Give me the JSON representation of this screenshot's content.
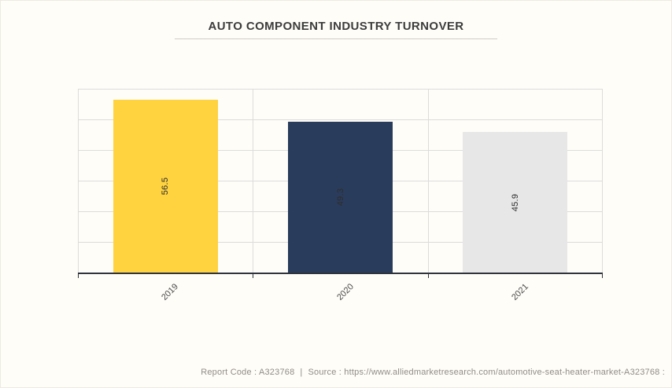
{
  "title": "AUTO COMPONENT INDUSTRY TURNOVER",
  "chart_data": {
    "type": "bar",
    "title": "AUTO COMPONENT INDUSTRY TURNOVER",
    "categories": [
      "2019",
      "2020",
      "2021"
    ],
    "values": [
      56.5,
      49.3,
      45.9
    ],
    "value_labels": [
      "56.5",
      "49.3",
      "45.9"
    ],
    "bar_colors": [
      "#FFD23F",
      "#2A3C5C",
      "#E7E7E7"
    ],
    "xlabel": "",
    "ylabel": "",
    "ylim": [
      0,
      60
    ],
    "grid_step": 10,
    "grid": true,
    "legend": false,
    "y_tick_labels_visible": false,
    "value_label_rotation": -90,
    "x_tick_label_rotation": -45
  },
  "footer": {
    "report_code": "Report Code : A323768",
    "separator": "|",
    "source": "Source : https://www.alliedmarketresearch.com/automotive-seat-heater-market-A323768 :"
  },
  "colors": {
    "background": "#FFFDF8",
    "gridline": "#DCDCDC",
    "axis": "#2F333D",
    "title_text": "#3C3C3C",
    "bar_value_text": "#2D2D2D",
    "x_tick_text": "#4A4A4A",
    "footer_text": "#908C88"
  }
}
